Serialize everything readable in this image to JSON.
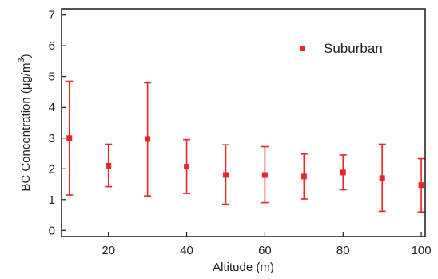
{
  "chart_data": {
    "type": "scatter",
    "xlabel": "Altitude (m)",
    "ylabel_main": "BC Concentration (μg/m",
    "ylabel_sup": "3",
    "ylabel_close": ")",
    "xlim": [
      8,
      101
    ],
    "ylim": [
      -0.2,
      7.2
    ],
    "xticks": [
      20,
      40,
      60,
      80,
      100
    ],
    "yticks": [
      0,
      1,
      2,
      3,
      4,
      5,
      6,
      7
    ],
    "grid": false,
    "legend_position": "top-right",
    "series": [
      {
        "name": "Suburban",
        "color": "#e8262a",
        "marker": "square",
        "points": [
          {
            "x": 10,
            "y": 3.0,
            "lo": 1.15,
            "hi": 4.85
          },
          {
            "x": 20,
            "y": 2.1,
            "lo": 1.42,
            "hi": 2.8
          },
          {
            "x": 30,
            "y": 2.97,
            "lo": 1.12,
            "hi": 4.8
          },
          {
            "x": 40,
            "y": 2.07,
            "lo": 1.2,
            "hi": 2.95
          },
          {
            "x": 50,
            "y": 1.8,
            "lo": 0.85,
            "hi": 2.78
          },
          {
            "x": 60,
            "y": 1.8,
            "lo": 0.9,
            "hi": 2.72
          },
          {
            "x": 70,
            "y": 1.75,
            "lo": 1.02,
            "hi": 2.48
          },
          {
            "x": 80,
            "y": 1.88,
            "lo": 1.32,
            "hi": 2.45
          },
          {
            "x": 90,
            "y": 1.7,
            "lo": 0.62,
            "hi": 2.8
          },
          {
            "x": 100,
            "y": 1.47,
            "lo": 0.6,
            "hi": 2.33
          }
        ]
      }
    ]
  }
}
